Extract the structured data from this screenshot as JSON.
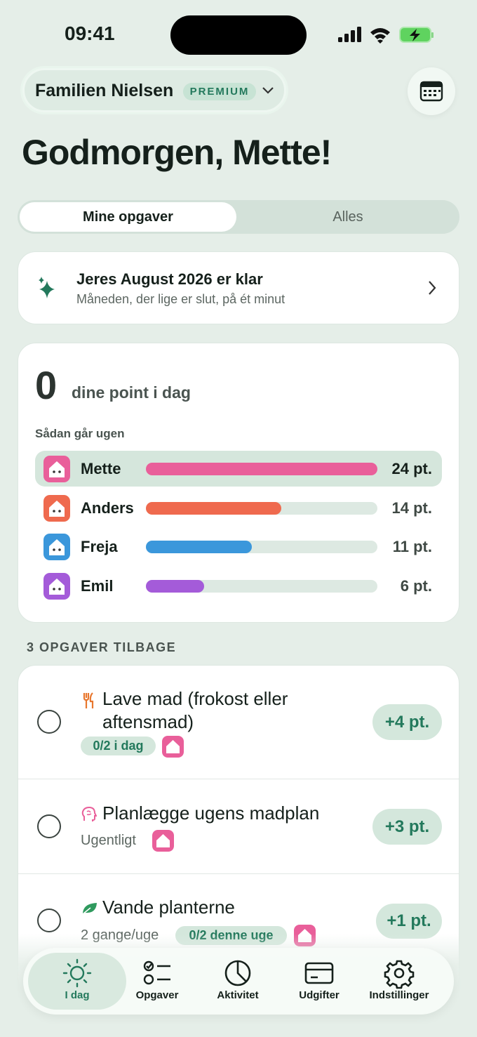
{
  "status_bar": {
    "time": "09:41"
  },
  "header": {
    "family": "Familien Nielsen",
    "badge": "PREMIUM"
  },
  "greeting": "Godmorgen, Mette!",
  "tabs": [
    "Mine opgaver",
    "Alles"
  ],
  "summary_card": {
    "title": "Jeres August 2026 er klar",
    "subtitle": "Måneden, der lige er slut, på ét minut"
  },
  "points": {
    "today": "0",
    "today_label": "dine point i dag",
    "week_label": "Sådan går ugen",
    "members": [
      {
        "name": "Mette",
        "color": "#e95f9a",
        "points": 24,
        "label": "24 pt."
      },
      {
        "name": "Anders",
        "color": "#ef6a4e",
        "points": 14,
        "label": "14 pt."
      },
      {
        "name": "Freja",
        "color": "#3b97db",
        "points": 11,
        "label": "11 pt."
      },
      {
        "name": "Emil",
        "color": "#a45bd9",
        "points": 6,
        "label": "6 pt."
      }
    ]
  },
  "tasks": {
    "heading": "3 OPGAVER TILBAGE",
    "items": [
      {
        "title": "Lave mad (frokost eller aftensmad)",
        "tag": "0/2 i dag",
        "points": "+4 pt."
      },
      {
        "title": "Planlægge ugens madplan",
        "frequency": "Ugentligt",
        "points": "+3 pt."
      },
      {
        "title": "Vande planterne",
        "frequency": "2 gange/uge",
        "tag": "0/2 denne uge",
        "points": "+1 pt."
      }
    ]
  },
  "nav": [
    "I dag",
    "Opgaver",
    "Aktivitet",
    "Udgifter",
    "Indstillinger"
  ]
}
